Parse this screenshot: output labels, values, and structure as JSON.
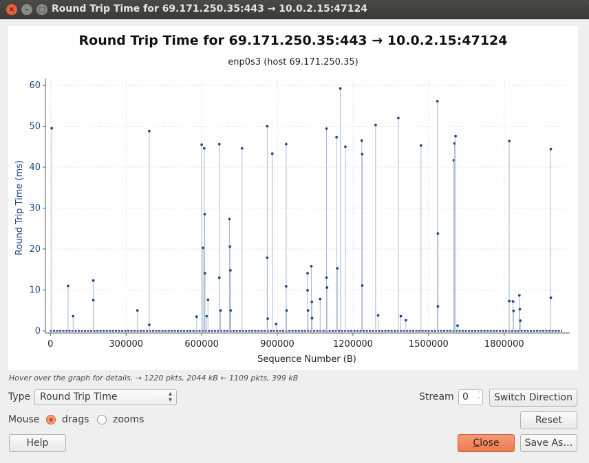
{
  "window": {
    "title": "Round Trip Time for 69.171.250.35:443 → 10.0.2.15:47124",
    "close_glyph": "×",
    "min_glyph": "–",
    "max_glyph": "▢"
  },
  "chart_data": {
    "type": "scatter",
    "title": "Round Trip Time for 69.171.250.35:443 → 10.0.2.15:47124",
    "subtitle": "enp0s3 (host 69.171.250.35)",
    "xlabel": "Sequence Number (B)",
    "ylabel": "Round Trip Time (ms)",
    "xlim": [
      -20000,
      2060000
    ],
    "ylim": [
      -0.5,
      61
    ],
    "x_ticks": [
      0,
      300000,
      600000,
      900000,
      1200000,
      1500000,
      1800000
    ],
    "x_tick_labels": [
      "0",
      "300000",
      "600000",
      "900000",
      "1200000",
      "1500000",
      "1800000"
    ],
    "y_ticks": [
      0,
      10,
      20,
      30,
      40,
      50,
      60
    ],
    "y_tick_labels": [
      "0",
      "10",
      "20",
      "30",
      "40",
      "50",
      "60"
    ],
    "grid": true,
    "series_color": "#1f4a8a",
    "stem_color": "#a9bbd3",
    "spikes": [
      [
        5000,
        49.5
      ],
      [
        70000,
        11.0
      ],
      [
        90000,
        3.6
      ],
      [
        170000,
        12.3
      ],
      [
        170000,
        7.5
      ],
      [
        345000,
        5.0
      ],
      [
        392000,
        48.8
      ],
      [
        392000,
        1.5
      ],
      [
        580000,
        3.5
      ],
      [
        600000,
        45.5
      ],
      [
        605000,
        20.3
      ],
      [
        610000,
        44.6
      ],
      [
        612000,
        28.5
      ],
      [
        613000,
        14.1
      ],
      [
        620000,
        3.6
      ],
      [
        625000,
        7.6
      ],
      [
        670000,
        45.6
      ],
      [
        670000,
        13.0
      ],
      [
        675000,
        5.0
      ],
      [
        710000,
        27.3
      ],
      [
        712000,
        20.6
      ],
      [
        714000,
        14.8
      ],
      [
        715000,
        5.0
      ],
      [
        760000,
        44.6
      ],
      [
        860000,
        50.0
      ],
      [
        860000,
        17.9
      ],
      [
        862000,
        3.0
      ],
      [
        880000,
        43.3
      ],
      [
        895000,
        1.7
      ],
      [
        935000,
        45.6
      ],
      [
        935000,
        10.9
      ],
      [
        937000,
        5.0
      ],
      [
        1020000,
        14.1
      ],
      [
        1020000,
        9.9
      ],
      [
        1022000,
        5.0
      ],
      [
        1035000,
        15.8
      ],
      [
        1037000,
        7.1
      ],
      [
        1038000,
        3.1
      ],
      [
        1070000,
        7.8
      ],
      [
        1095000,
        49.4
      ],
      [
        1095000,
        13.0
      ],
      [
        1097000,
        10.6
      ],
      [
        1135000,
        47.3
      ],
      [
        1138000,
        15.3
      ],
      [
        1150000,
        59.2
      ],
      [
        1170000,
        45.0
      ],
      [
        1235000,
        46.5
      ],
      [
        1237000,
        43.2
      ],
      [
        1237000,
        11.1
      ],
      [
        1290000,
        50.3
      ],
      [
        1300000,
        3.8
      ],
      [
        1380000,
        52.0
      ],
      [
        1390000,
        3.6
      ],
      [
        1410000,
        2.6
      ],
      [
        1470000,
        45.3
      ],
      [
        1535000,
        56.1
      ],
      [
        1537000,
        23.8
      ],
      [
        1537000,
        6.0
      ],
      [
        1600000,
        41.7
      ],
      [
        1603000,
        45.8
      ],
      [
        1607000,
        47.6
      ],
      [
        1615000,
        1.3
      ],
      [
        1820000,
        46.4
      ],
      [
        1820000,
        7.3
      ],
      [
        1835000,
        7.2
      ],
      [
        1837000,
        4.9
      ],
      [
        1860000,
        8.7
      ],
      [
        1862000,
        5.3
      ],
      [
        1864000,
        2.5
      ],
      [
        1985000,
        44.4
      ],
      [
        1985000,
        8.1
      ]
    ],
    "baseline_x": [
      -2000,
      2030000
    ],
    "baseline_y": 0
  },
  "hint": "Hover over the graph for details. → 1220 pkts, 2044 kB ← 1109 pkts, 399 kB",
  "controls": {
    "type_label": "Type",
    "type_value": "Round Trip Time",
    "stream_label": "Stream",
    "stream_value": "0",
    "switch_direction": "Switch Direction",
    "mouse_label": "Mouse",
    "drags_label": "drags",
    "zooms_label": "zooms",
    "mouse_mode": "drags",
    "reset": "Reset",
    "help": "Help",
    "close": "Close",
    "save_as": "Save As…"
  }
}
